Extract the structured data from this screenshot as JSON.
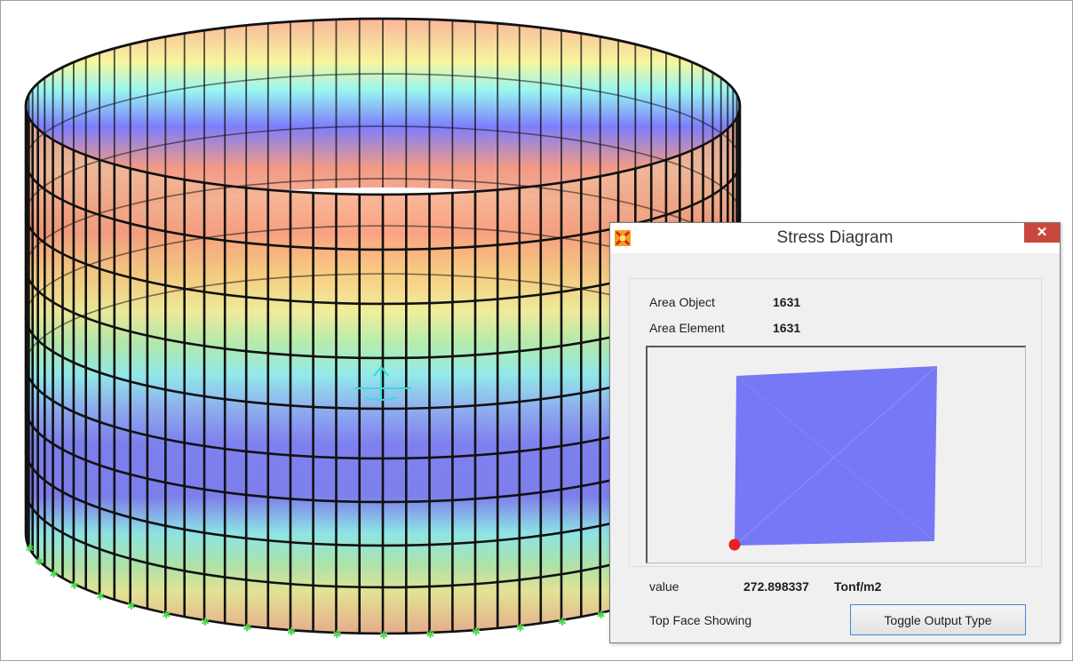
{
  "dialog": {
    "title": "Stress Diagram",
    "close_glyph": "✕",
    "area_object_label": "Area Object",
    "area_object_value": "1631",
    "area_element_label": "Area Element",
    "area_element_value": "1631",
    "value_label": "value",
    "value": "272.898337",
    "value_unit": "Tonf/m2",
    "face_status": "Top Face Showing",
    "toggle_button_label": "Toggle Output Type"
  },
  "icons": {
    "app": "app-icon",
    "close": "close-icon",
    "axis": "axis-icon"
  },
  "colors": {
    "stress_band_top": "#f4a48e",
    "stress_band_mid": "#7b7dfb",
    "stress_band_yellow": "#f5f59a",
    "stress_band_cyan": "#8ff5f5",
    "element_fill": "#7678f5",
    "selected_node": "#e8201c",
    "support": "#4dd84d",
    "close_button": "#c9483e"
  }
}
